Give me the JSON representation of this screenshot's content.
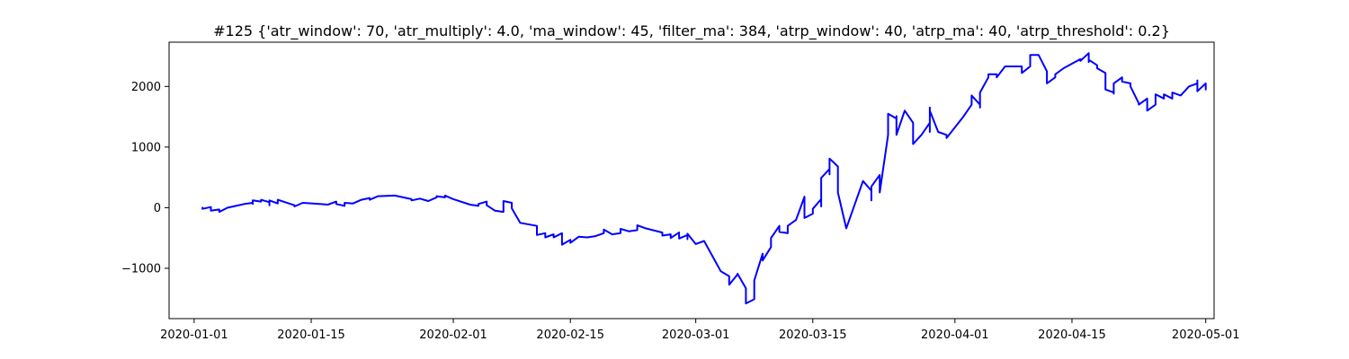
{
  "chart_data": {
    "type": "line",
    "title": "#125 {'atr_window': 70, 'atr_multiply': 4.0, 'ma_window': 45, 'filter_ma': 384, 'atrp_window': 40, 'atrp_ma': 40, 'atrp_threshold': 0.2}",
    "xlabel": "",
    "ylabel": "",
    "x_type": "date",
    "xlim": [
      "2019-12-29",
      "2020-05-02"
    ],
    "ylim": [
      -1830,
      2730
    ],
    "grid": false,
    "x_ticks": [
      "2020-01-01",
      "2020-01-15",
      "2020-02-01",
      "2020-02-15",
      "2020-03-01",
      "2020-03-15",
      "2020-04-01",
      "2020-04-15",
      "2020-05-01"
    ],
    "y_ticks": [
      -1000,
      0,
      1000,
      2000
    ],
    "y_tick_labels": [
      "−1000",
      "0",
      "1000",
      "2000"
    ],
    "series": [
      {
        "color": "#0000ff",
        "points": [
          [
            "2020-01-02",
            0
          ],
          [
            "2020-01-02",
            -20
          ],
          [
            "2020-01-03",
            10
          ],
          [
            "2020-01-03",
            -50
          ],
          [
            "2020-01-04",
            -30
          ],
          [
            "2020-01-04",
            -70
          ],
          [
            "2020-01-05",
            0
          ],
          [
            "2020-01-06",
            30
          ],
          [
            "2020-01-07",
            60
          ],
          [
            "2020-01-08",
            80
          ],
          [
            "2020-01-08",
            60
          ],
          [
            "2020-01-08",
            120
          ],
          [
            "2020-01-09",
            100
          ],
          [
            "2020-01-09",
            130
          ],
          [
            "2020-01-10",
            90
          ],
          [
            "2020-01-10",
            40
          ],
          [
            "2020-01-10",
            120
          ],
          [
            "2020-01-11",
            70
          ],
          [
            "2020-01-11",
            130
          ],
          [
            "2020-01-13",
            40
          ],
          [
            "2020-01-13",
            20
          ],
          [
            "2020-01-14",
            80
          ],
          [
            "2020-01-16",
            60
          ],
          [
            "2020-01-17",
            50
          ],
          [
            "2020-01-18",
            100
          ],
          [
            "2020-01-18",
            60
          ],
          [
            "2020-01-19",
            30
          ],
          [
            "2020-01-19",
            80
          ],
          [
            "2020-01-20",
            70
          ],
          [
            "2020-01-21",
            130
          ],
          [
            "2020-01-22",
            160
          ],
          [
            "2020-01-22",
            130
          ],
          [
            "2020-01-23",
            190
          ],
          [
            "2020-01-25",
            200
          ],
          [
            "2020-01-27",
            140
          ],
          [
            "2020-01-27",
            120
          ],
          [
            "2020-01-28",
            150
          ],
          [
            "2020-01-29",
            110
          ],
          [
            "2020-01-30",
            170
          ],
          [
            "2020-01-30",
            190
          ],
          [
            "2020-01-31",
            170
          ],
          [
            "2020-01-31",
            200
          ],
          [
            "2020-02-01",
            140
          ],
          [
            "2020-02-03",
            50
          ],
          [
            "2020-02-04",
            30
          ],
          [
            "2020-02-04",
            60
          ],
          [
            "2020-02-05",
            100
          ],
          [
            "2020-02-05",
            40
          ],
          [
            "2020-02-06",
            -50
          ],
          [
            "2020-02-07",
            -70
          ],
          [
            "2020-02-07",
            110
          ],
          [
            "2020-02-08",
            80
          ],
          [
            "2020-02-08",
            -10
          ],
          [
            "2020-02-09",
            -250
          ],
          [
            "2020-02-11",
            -300
          ],
          [
            "2020-02-11",
            -450
          ],
          [
            "2020-02-12",
            -420
          ],
          [
            "2020-02-12",
            -490
          ],
          [
            "2020-02-13",
            -440
          ],
          [
            "2020-02-13",
            -490
          ],
          [
            "2020-02-14",
            -420
          ],
          [
            "2020-02-14",
            -610
          ],
          [
            "2020-02-15",
            -530
          ],
          [
            "2020-02-15",
            -580
          ],
          [
            "2020-02-16",
            -480
          ],
          [
            "2020-02-17",
            -490
          ],
          [
            "2020-02-18",
            -470
          ],
          [
            "2020-02-19",
            -420
          ],
          [
            "2020-02-19",
            -360
          ],
          [
            "2020-02-20",
            -440
          ],
          [
            "2020-02-21",
            -420
          ],
          [
            "2020-02-21",
            -350
          ],
          [
            "2020-02-22",
            -390
          ],
          [
            "2020-02-23",
            -370
          ],
          [
            "2020-02-23",
            -290
          ],
          [
            "2020-02-24",
            -340
          ],
          [
            "2020-02-26",
            -410
          ],
          [
            "2020-02-26",
            -460
          ],
          [
            "2020-02-27",
            -440
          ],
          [
            "2020-02-27",
            -500
          ],
          [
            "2020-02-28",
            -410
          ],
          [
            "2020-02-28",
            -510
          ],
          [
            "2020-02-29",
            -450
          ],
          [
            "2020-02-29",
            -520
          ],
          [
            "2020-02-29",
            -430
          ],
          [
            "2020-03-01",
            -600
          ],
          [
            "2020-03-02",
            -550
          ],
          [
            "2020-03-03",
            -800
          ],
          [
            "2020-03-04",
            -1050
          ],
          [
            "2020-03-05",
            -1130
          ],
          [
            "2020-03-05",
            -1270
          ],
          [
            "2020-03-06",
            -1100
          ],
          [
            "2020-03-06",
            -1090
          ],
          [
            "2020-03-07",
            -1330
          ],
          [
            "2020-03-07",
            -1490
          ],
          [
            "2020-03-07",
            -1580
          ],
          [
            "2020-03-08",
            -1510
          ],
          [
            "2020-03-08",
            -1200
          ],
          [
            "2020-03-09",
            -760
          ],
          [
            "2020-03-09",
            -870
          ],
          [
            "2020-03-10",
            -650
          ],
          [
            "2020-03-10",
            -500
          ],
          [
            "2020-03-11",
            -300
          ],
          [
            "2020-03-11",
            -400
          ],
          [
            "2020-03-12",
            -420
          ],
          [
            "2020-03-12",
            -300
          ],
          [
            "2020-03-13",
            -200
          ],
          [
            "2020-03-14",
            180
          ],
          [
            "2020-03-14",
            -170
          ],
          [
            "2020-03-15",
            -100
          ],
          [
            "2020-03-15",
            -20
          ],
          [
            "2020-03-16",
            140
          ],
          [
            "2020-03-16",
            20
          ],
          [
            "2020-03-16",
            320
          ],
          [
            "2020-03-16",
            490
          ],
          [
            "2020-03-17",
            640
          ],
          [
            "2020-03-17",
            550
          ],
          [
            "2020-03-17",
            810
          ],
          [
            "2020-03-18",
            680
          ],
          [
            "2020-03-18",
            420
          ],
          [
            "2020-03-18",
            250
          ],
          [
            "2020-03-19",
            -340
          ],
          [
            "2020-03-21",
            440
          ],
          [
            "2020-03-22",
            280
          ],
          [
            "2020-03-22",
            120
          ],
          [
            "2020-03-22",
            350
          ],
          [
            "2020-03-23",
            540
          ],
          [
            "2020-03-23",
            250
          ],
          [
            "2020-03-24",
            1200
          ],
          [
            "2020-03-24",
            1550
          ],
          [
            "2020-03-25",
            1470
          ],
          [
            "2020-03-25",
            1510
          ],
          [
            "2020-03-25",
            1200
          ],
          [
            "2020-03-26",
            1600
          ],
          [
            "2020-03-27",
            1400
          ],
          [
            "2020-03-27",
            1050
          ],
          [
            "2020-03-28",
            1200
          ],
          [
            "2020-03-29",
            1400
          ],
          [
            "2020-03-29",
            1250
          ],
          [
            "2020-03-29",
            1650
          ],
          [
            "2020-03-29",
            1600
          ],
          [
            "2020-03-30",
            1250
          ],
          [
            "2020-03-31",
            1200
          ],
          [
            "2020-03-31",
            1150
          ],
          [
            "2020-04-02",
            1500
          ],
          [
            "2020-04-03",
            1700
          ],
          [
            "2020-04-03",
            1850
          ],
          [
            "2020-04-04",
            1700
          ],
          [
            "2020-04-04",
            1650
          ],
          [
            "2020-04-04",
            1900
          ],
          [
            "2020-04-05",
            2150
          ],
          [
            "2020-04-05",
            2200
          ],
          [
            "2020-04-06",
            2200
          ],
          [
            "2020-04-06",
            2150
          ],
          [
            "2020-04-07",
            2330
          ],
          [
            "2020-04-08",
            2330
          ],
          [
            "2020-04-09",
            2330
          ],
          [
            "2020-04-09",
            2220
          ],
          [
            "2020-04-10",
            2330
          ],
          [
            "2020-04-10",
            2520
          ],
          [
            "2020-04-11",
            2520
          ],
          [
            "2020-04-12",
            2250
          ],
          [
            "2020-04-12",
            2230
          ],
          [
            "2020-04-12",
            2050
          ],
          [
            "2020-04-13",
            2150
          ],
          [
            "2020-04-13",
            2200
          ],
          [
            "2020-04-14",
            2300
          ],
          [
            "2020-04-16",
            2450
          ],
          [
            "2020-04-16",
            2420
          ],
          [
            "2020-04-17",
            2550
          ],
          [
            "2020-04-17",
            2400
          ],
          [
            "2020-04-17",
            2440
          ],
          [
            "2020-04-18",
            2350
          ],
          [
            "2020-04-18",
            2300
          ],
          [
            "2020-04-19",
            2220
          ],
          [
            "2020-04-19",
            2000
          ],
          [
            "2020-04-19",
            1950
          ],
          [
            "2020-04-20",
            1900
          ],
          [
            "2020-04-20",
            1880
          ],
          [
            "2020-04-20",
            2050
          ],
          [
            "2020-04-21",
            2150
          ],
          [
            "2020-04-21",
            2080
          ],
          [
            "2020-04-22",
            2050
          ],
          [
            "2020-04-22",
            2000
          ],
          [
            "2020-04-23",
            1720
          ],
          [
            "2020-04-23",
            1700
          ],
          [
            "2020-04-24",
            1800
          ],
          [
            "2020-04-24",
            1600
          ],
          [
            "2020-04-25",
            1700
          ],
          [
            "2020-04-25",
            1870
          ],
          [
            "2020-04-26",
            1800
          ],
          [
            "2020-04-26",
            1870
          ],
          [
            "2020-04-27",
            1800
          ],
          [
            "2020-04-27",
            1900
          ],
          [
            "2020-04-28",
            1850
          ],
          [
            "2020-04-29",
            2000
          ],
          [
            "2020-04-30",
            2050
          ],
          [
            "2020-04-30",
            2100
          ],
          [
            "2020-04-30",
            1920
          ],
          [
            "2020-05-01",
            2050
          ],
          [
            "2020-05-01",
            2000
          ],
          [
            "2020-05-01",
            1950
          ]
        ]
      }
    ]
  }
}
